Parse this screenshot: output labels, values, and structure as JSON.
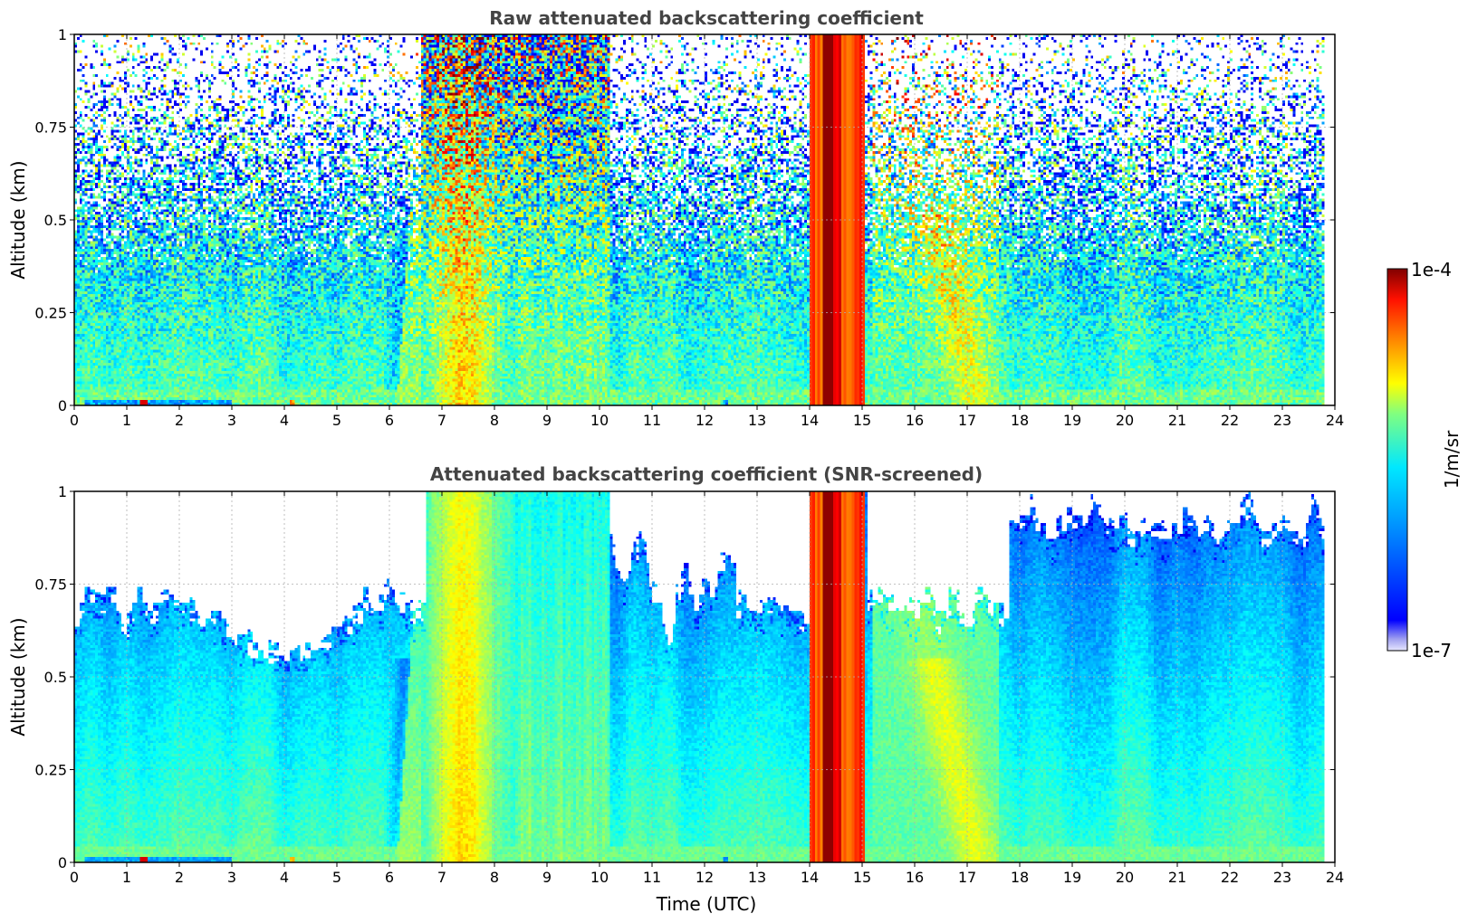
{
  "figure": {
    "colormap": "jet",
    "colorbar": {
      "label": "1/m/sr",
      "tick_labels": [
        "1e-7",
        "1e-4"
      ],
      "range": [
        1e-07,
        0.0001
      ],
      "scale": "log"
    }
  },
  "chart_data": [
    {
      "type": "heatmap",
      "title": "Raw attenuated backscattering coefficient",
      "xlabel": "",
      "ylabel": "Altitude (km)",
      "xlim": [
        0,
        24
      ],
      "ylim": [
        0,
        1
      ],
      "x_ticks": [
        "0",
        "1",
        "2",
        "3",
        "4",
        "5",
        "6",
        "7",
        "8",
        "9",
        "10",
        "11",
        "12",
        "13",
        "14",
        "15",
        "16",
        "17",
        "18",
        "19",
        "20",
        "21",
        "22",
        "23",
        "24"
      ],
      "y_ticks": [
        "0",
        "0.25",
        "0.5",
        "0.75",
        "1"
      ],
      "grid": true,
      "data_end_time": 23.8,
      "screened": false,
      "features": [
        {
          "name": "boundary layer aerosol",
          "t_start": 0,
          "t_end": 23.8,
          "log_value_near_ground": -5.9
        },
        {
          "name": "aerosol plume",
          "t_start": 6.6,
          "t_end": 8.2,
          "log_value": -5.2
        },
        {
          "name": "precipitation / cloud",
          "t_start": 14.0,
          "t_end": 15.05,
          "log_value": -4.2
        },
        {
          "name": "near-ground spike",
          "t_start": 1.25,
          "t_end": 1.4,
          "log_value": -4.3
        }
      ]
    },
    {
      "type": "heatmap",
      "title": "Attenuated backscattering coefficient (SNR-screened)",
      "xlabel": "Time (UTC)",
      "ylabel": "Altitude (km)",
      "xlim": [
        0,
        24
      ],
      "ylim": [
        0,
        1
      ],
      "x_ticks": [
        "0",
        "1",
        "2",
        "3",
        "4",
        "5",
        "6",
        "7",
        "8",
        "9",
        "10",
        "11",
        "12",
        "13",
        "14",
        "15",
        "16",
        "17",
        "18",
        "19",
        "20",
        "21",
        "22",
        "23",
        "24"
      ],
      "y_ticks": [
        "0",
        "0.25",
        "0.5",
        "0.75",
        "1"
      ],
      "grid": true,
      "data_end_time": 23.8,
      "screened": true,
      "features": [
        {
          "name": "boundary layer aerosol",
          "t_start": 0,
          "t_end": 23.8,
          "log_value_near_ground": -5.9
        },
        {
          "name": "aerosol plume",
          "t_start": 6.6,
          "t_end": 8.2,
          "log_value": -5.2
        },
        {
          "name": "precipitation / cloud",
          "t_start": 14.0,
          "t_end": 15.05,
          "log_value": -4.2
        },
        {
          "name": "near-ground spike",
          "t_start": 1.25,
          "t_end": 1.4,
          "log_value": -4.3
        }
      ]
    }
  ]
}
